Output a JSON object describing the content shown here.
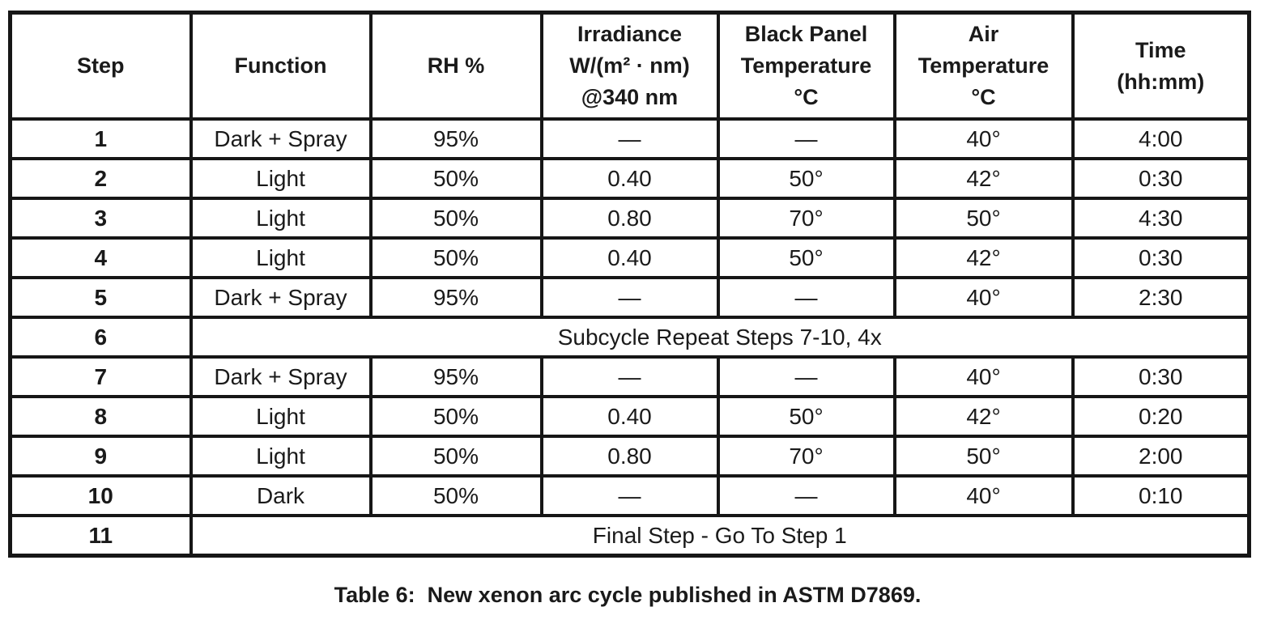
{
  "caption": "Table 6:  New xenon arc cycle published in ASTM D7869.",
  "table": {
    "headers": [
      {
        "id": "step",
        "lines": [
          "Step"
        ]
      },
      {
        "id": "function",
        "lines": [
          "Function"
        ]
      },
      {
        "id": "rh-percent",
        "lines": [
          "RH %"
        ]
      },
      {
        "id": "irradiance",
        "lines": [
          "Irradiance",
          "W/(m² · nm)",
          "@340 nm"
        ]
      },
      {
        "id": "black-panel-temp",
        "lines": [
          "Black Panel",
          "Temperature",
          "°C"
        ]
      },
      {
        "id": "air-temp",
        "lines": [
          "Air",
          "Temperature",
          "°C"
        ]
      },
      {
        "id": "time",
        "lines": [
          "Time",
          "(hh:mm)"
        ]
      }
    ],
    "rows": [
      {
        "step": "1",
        "cells": [
          "Dark + Spray",
          "95%",
          "—",
          "—",
          "40°",
          "4:00"
        ]
      },
      {
        "step": "2",
        "cells": [
          "Light",
          "50%",
          "0.40",
          "50°",
          "42°",
          "0:30"
        ]
      },
      {
        "step": "3",
        "cells": [
          "Light",
          "50%",
          "0.80",
          "70°",
          "50°",
          "4:30"
        ]
      },
      {
        "step": "4",
        "cells": [
          "Light",
          "50%",
          "0.40",
          "50°",
          "42°",
          "0:30"
        ]
      },
      {
        "step": "5",
        "cells": [
          "Dark + Spray",
          "95%",
          "—",
          "—",
          "40°",
          "2:30"
        ]
      },
      {
        "step": "6",
        "span": "Subcycle Repeat Steps 7-10, 4x"
      },
      {
        "step": "7",
        "cells": [
          "Dark + Spray",
          "95%",
          "—",
          "—",
          "40°",
          "0:30"
        ]
      },
      {
        "step": "8",
        "cells": [
          "Light",
          "50%",
          "0.40",
          "50°",
          "42°",
          "0:20"
        ]
      },
      {
        "step": "9",
        "cells": [
          "Light",
          "50%",
          "0.80",
          "70°",
          "50°",
          "2:00"
        ]
      },
      {
        "step": "10",
        "cells": [
          "Dark",
          "50%",
          "—",
          "—",
          "40°",
          "0:10"
        ]
      },
      {
        "step": "11",
        "span": "Final Step - Go To Step 1"
      }
    ]
  }
}
